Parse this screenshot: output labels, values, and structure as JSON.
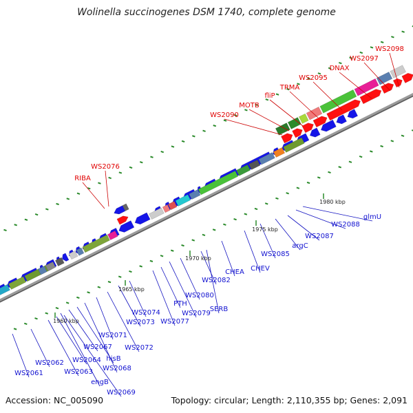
{
  "title": "Wolinella succinogenes DSM 1740, complete genome",
  "footer": {
    "accession": "Accession: NC_005090",
    "stats": "Topology: circular; Length: 2,110,355 bp; Genes: 2,091"
  },
  "colors": {
    "forward_label": "#e00000",
    "reverse_label": "#1010d0",
    "forward_gene": "#ff1010",
    "reverse_gene": "#1515e8",
    "backbone": "#8a8a8a",
    "tick": "#2a8a2a"
  },
  "scale_labels": [
    "1960 kbp",
    "1965 kbp",
    "1970 kbp",
    "1975 kbp",
    "1980 kbp"
  ],
  "forward_labels": [
    "WS2076",
    "RIBA",
    "WS2090",
    "MOTB",
    "fliP",
    "TRMA",
    "WS2095",
    "DNAX",
    "WS2097",
    "WS2098"
  ],
  "reverse_labels": [
    "WS2061",
    "WS2062",
    "WS2063",
    "WS2064",
    "engB",
    "WS2067",
    "hisB",
    "WS2068",
    "WS2069",
    "WS2071",
    "WS2072",
    "WS2073",
    "WS2074",
    "WS2077",
    "PTH",
    "WS2079",
    "WS2080",
    "WS2082",
    "SERB",
    "CHEA",
    "CHEV",
    "WS2085",
    "argC",
    "WS2087",
    "WS2088",
    "glmU"
  ]
}
